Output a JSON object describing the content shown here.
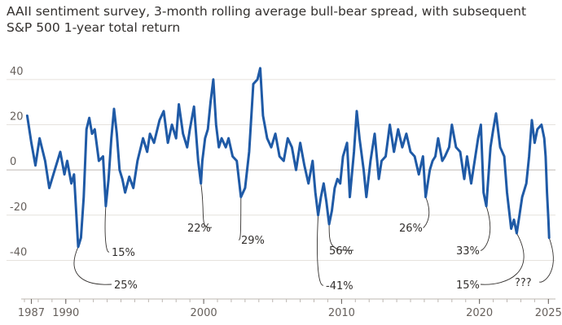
{
  "title": "AAII sentiment survey, 3-month rolling average bull-bear spread, with subsequent S&P 500 1-year total return",
  "chart_data": {
    "type": "line",
    "title": "AAII sentiment survey, 3-month rolling average bull-bear spread, with subsequent S&P 500 1-year total return",
    "xlabel": "",
    "ylabel": "",
    "xlim": [
      1987.0,
      2025.1
    ],
    "ylim": [
      -56,
      50
    ],
    "grid": true,
    "line_color": "#1f5aa6",
    "y_ticks": [
      -40,
      -20,
      0,
      20,
      40
    ],
    "x_tick_labels": [
      {
        "x": 1987.5,
        "label": "1987"
      },
      {
        "x": 1990,
        "label": "1990"
      },
      {
        "x": 2000,
        "label": "2000"
      },
      {
        "x": 2010,
        "label": "2010"
      },
      {
        "x": 2020,
        "label": "2020"
      },
      {
        "x": 2025,
        "label": "2025"
      }
    ],
    "series": [
      {
        "values": [
          [
            1987.2,
            24
          ],
          [
            1987.5,
            12
          ],
          [
            1987.8,
            2
          ],
          [
            1988.1,
            14
          ],
          [
            1988.5,
            4
          ],
          [
            1988.8,
            -8
          ],
          [
            1989.2,
            0
          ],
          [
            1989.6,
            8
          ],
          [
            1989.9,
            -2
          ],
          [
            1990.1,
            4
          ],
          [
            1990.4,
            -6
          ],
          [
            1990.6,
            -2
          ],
          [
            1990.9,
            -34
          ],
          [
            1991.1,
            -30
          ],
          [
            1991.3,
            -12
          ],
          [
            1991.5,
            18
          ],
          [
            1991.7,
            23
          ],
          [
            1991.9,
            16
          ],
          [
            1992.1,
            18
          ],
          [
            1992.4,
            4
          ],
          [
            1992.7,
            6
          ],
          [
            1992.9,
            -16
          ],
          [
            1993.1,
            -4
          ],
          [
            1993.3,
            14
          ],
          [
            1993.5,
            27
          ],
          [
            1993.7,
            16
          ],
          [
            1993.9,
            0
          ],
          [
            1994.1,
            -4
          ],
          [
            1994.3,
            -10
          ],
          [
            1994.6,
            -3
          ],
          [
            1994.9,
            -8
          ],
          [
            1995.2,
            4
          ],
          [
            1995.6,
            14
          ],
          [
            1995.9,
            8
          ],
          [
            1996.1,
            16
          ],
          [
            1996.4,
            12
          ],
          [
            1996.8,
            22
          ],
          [
            1997.1,
            26
          ],
          [
            1997.4,
            12
          ],
          [
            1997.7,
            20
          ],
          [
            1998.0,
            14
          ],
          [
            1998.2,
            29
          ],
          [
            1998.5,
            16
          ],
          [
            1998.8,
            10
          ],
          [
            1999.0,
            18
          ],
          [
            1999.3,
            28
          ],
          [
            1999.6,
            4
          ],
          [
            1999.8,
            -6
          ],
          [
            1999.9,
            4
          ],
          [
            2000.1,
            14
          ],
          [
            2000.3,
            18
          ],
          [
            2000.5,
            30
          ],
          [
            2000.7,
            40
          ],
          [
            2000.9,
            20
          ],
          [
            2001.1,
            10
          ],
          [
            2001.3,
            14
          ],
          [
            2001.6,
            10
          ],
          [
            2001.8,
            14
          ],
          [
            2002.1,
            6
          ],
          [
            2002.4,
            4
          ],
          [
            2002.7,
            -12
          ],
          [
            2003.0,
            -8
          ],
          [
            2003.3,
            8
          ],
          [
            2003.6,
            38
          ],
          [
            2003.9,
            40
          ],
          [
            2004.1,
            45
          ],
          [
            2004.3,
            24
          ],
          [
            2004.6,
            14
          ],
          [
            2004.9,
            10
          ],
          [
            2005.2,
            16
          ],
          [
            2005.5,
            6
          ],
          [
            2005.8,
            4
          ],
          [
            2006.1,
            14
          ],
          [
            2006.4,
            10
          ],
          [
            2006.7,
            0
          ],
          [
            2007.0,
            12
          ],
          [
            2007.3,
            2
          ],
          [
            2007.6,
            -6
          ],
          [
            2007.9,
            4
          ],
          [
            2008.1,
            -10
          ],
          [
            2008.3,
            -20
          ],
          [
            2008.5,
            -12
          ],
          [
            2008.7,
            -6
          ],
          [
            2008.9,
            -14
          ],
          [
            2009.1,
            -24
          ],
          [
            2009.3,
            -18
          ],
          [
            2009.5,
            -8
          ],
          [
            2009.7,
            -4
          ],
          [
            2009.9,
            -6
          ],
          [
            2010.1,
            6
          ],
          [
            2010.4,
            12
          ],
          [
            2010.6,
            -12
          ],
          [
            2010.9,
            8
          ],
          [
            2011.1,
            26
          ],
          [
            2011.3,
            14
          ],
          [
            2011.6,
            0
          ],
          [
            2011.8,
            -12
          ],
          [
            2012.1,
            4
          ],
          [
            2012.4,
            16
          ],
          [
            2012.7,
            -4
          ],
          [
            2012.9,
            4
          ],
          [
            2013.2,
            6
          ],
          [
            2013.5,
            20
          ],
          [
            2013.8,
            8
          ],
          [
            2014.1,
            18
          ],
          [
            2014.4,
            10
          ],
          [
            2014.7,
            16
          ],
          [
            2015.0,
            8
          ],
          [
            2015.3,
            6
          ],
          [
            2015.6,
            -2
          ],
          [
            2015.9,
            6
          ],
          [
            2016.1,
            -12
          ],
          [
            2016.4,
            0
          ],
          [
            2016.6,
            4
          ],
          [
            2016.8,
            6
          ],
          [
            2017.0,
            14
          ],
          [
            2017.3,
            4
          ],
          [
            2017.5,
            6
          ],
          [
            2017.8,
            10
          ],
          [
            2018.0,
            20
          ],
          [
            2018.3,
            10
          ],
          [
            2018.6,
            8
          ],
          [
            2018.9,
            -4
          ],
          [
            2019.1,
            6
          ],
          [
            2019.4,
            -6
          ],
          [
            2019.6,
            2
          ],
          [
            2019.9,
            14
          ],
          [
            2020.1,
            20
          ],
          [
            2020.3,
            -10
          ],
          [
            2020.5,
            -16
          ],
          [
            2020.8,
            10
          ],
          [
            2021.0,
            18
          ],
          [
            2021.2,
            25
          ],
          [
            2021.5,
            10
          ],
          [
            2021.8,
            6
          ],
          [
            2022.0,
            -10
          ],
          [
            2022.3,
            -26
          ],
          [
            2022.5,
            -22
          ],
          [
            2022.7,
            -28
          ],
          [
            2022.9,
            -20
          ],
          [
            2023.1,
            -12
          ],
          [
            2023.4,
            -6
          ],
          [
            2023.6,
            6
          ],
          [
            2023.8,
            22
          ],
          [
            2024.0,
            12
          ],
          [
            2024.2,
            18
          ],
          [
            2024.5,
            20
          ],
          [
            2024.7,
            14
          ],
          [
            2024.8,
            6
          ],
          [
            2024.9,
            -10
          ],
          [
            2025.0,
            -22
          ],
          [
            2025.05,
            -30
          ]
        ]
      }
    ],
    "annotations": [
      {
        "x": 1990.9,
        "y": -34,
        "label": "25%"
      },
      {
        "x": 1992.9,
        "y": -16,
        "label": "15%"
      },
      {
        "x": 1999.8,
        "y": -6,
        "label": "22%"
      },
      {
        "x": 2002.7,
        "y": -12,
        "label": "29%"
      },
      {
        "x": 2008.3,
        "y": -20,
        "label": "-41%"
      },
      {
        "x": 2009.1,
        "y": -24,
        "label": "56%"
      },
      {
        "x": 2016.1,
        "y": -12,
        "label": "26%"
      },
      {
        "x": 2020.5,
        "y": -16,
        "label": "33%"
      },
      {
        "x": 2022.7,
        "y": -28,
        "label": "15%"
      },
      {
        "x": 2025.05,
        "y": -30,
        "label": "???"
      }
    ]
  }
}
